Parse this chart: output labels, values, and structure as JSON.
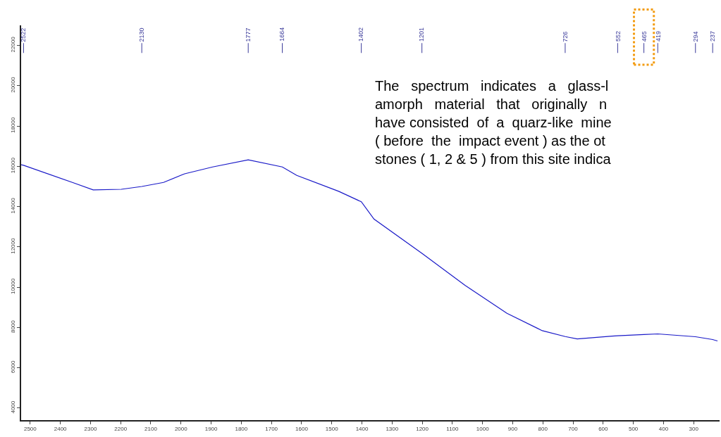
{
  "chart_data": {
    "type": "line",
    "x": [
      2530,
      2522,
      2360,
      2291,
      2198,
      2130,
      2058,
      1988,
      1895,
      1777,
      1664,
      1616,
      1477,
      1402,
      1360,
      1201,
      1058,
      919,
      802,
      726,
      686,
      570,
      552,
      465,
      419,
      294,
      237,
      221
    ],
    "series": [
      {
        "color": "#1a1ac8",
        "values": [
          16080,
          16050,
          15200,
          14830,
          14860,
          15000,
          15200,
          15630,
          15970,
          16320,
          15970,
          15550,
          14760,
          14240,
          13380,
          11680,
          10090,
          8700,
          7840,
          7550,
          7430,
          7570,
          7590,
          7650,
          7680,
          7540,
          7400,
          7330
        ]
      }
    ],
    "xlim": [
      2530,
      214
    ],
    "xticks": [
      2500,
      2400,
      2300,
      2200,
      2100,
      2000,
      1900,
      1800,
      1700,
      1600,
      1500,
      1400,
      1300,
      1200,
      1100,
      1000,
      900,
      800,
      700,
      600,
      500,
      400,
      300
    ],
    "ylim": [
      3400,
      23000
    ],
    "yticks": [
      4000,
      6000,
      8000,
      10000,
      12000,
      14000,
      16000,
      18000,
      20000,
      22000
    ],
    "marker": "none",
    "line_style": "solid",
    "ref_lines": [
      {
        "axis": "x",
        "value": 2522,
        "label": "2522",
        "color": "#3a3a9a"
      },
      {
        "axis": "x",
        "value": 2130,
        "label": "2130",
        "color": "#3a3a9a"
      },
      {
        "axis": "x",
        "value": 1777,
        "label": "1777",
        "color": "#3a3a9a"
      },
      {
        "axis": "x",
        "value": 1664,
        "label": "1664",
        "color": "#3a3a9a"
      },
      {
        "axis": "x",
        "value": 1402,
        "label": "1402",
        "color": "#3a3a9a"
      },
      {
        "axis": "x",
        "value": 1201,
        "label": "1201",
        "color": "#3a3a9a"
      },
      {
        "axis": "x",
        "value": 726,
        "label": "726",
        "color": "#3a3a9a"
      },
      {
        "axis": "x",
        "value": 552,
        "label": "552",
        "color": "#3a3a9a"
      },
      {
        "axis": "x",
        "value": 465,
        "label": "465",
        "color": "#3a3a9a"
      },
      {
        "axis": "x",
        "value": 419,
        "label": "419",
        "color": "#3a3a9a"
      },
      {
        "axis": "x",
        "value": 294,
        "label": "294",
        "color": "#3a3a9a"
      },
      {
        "axis": "x",
        "value": 237,
        "label": "237",
        "color": "#3a3a9a"
      }
    ],
    "annotations": [
      "The   spectrum   indicates   a   glass-l\namorph   material   that   originally   n\nhave consisted  of  a  quarz-like  mine\n( before  the  impact event ) as the ot\nstones ( 1, 2 & 5 ) from this site indica"
    ]
  }
}
